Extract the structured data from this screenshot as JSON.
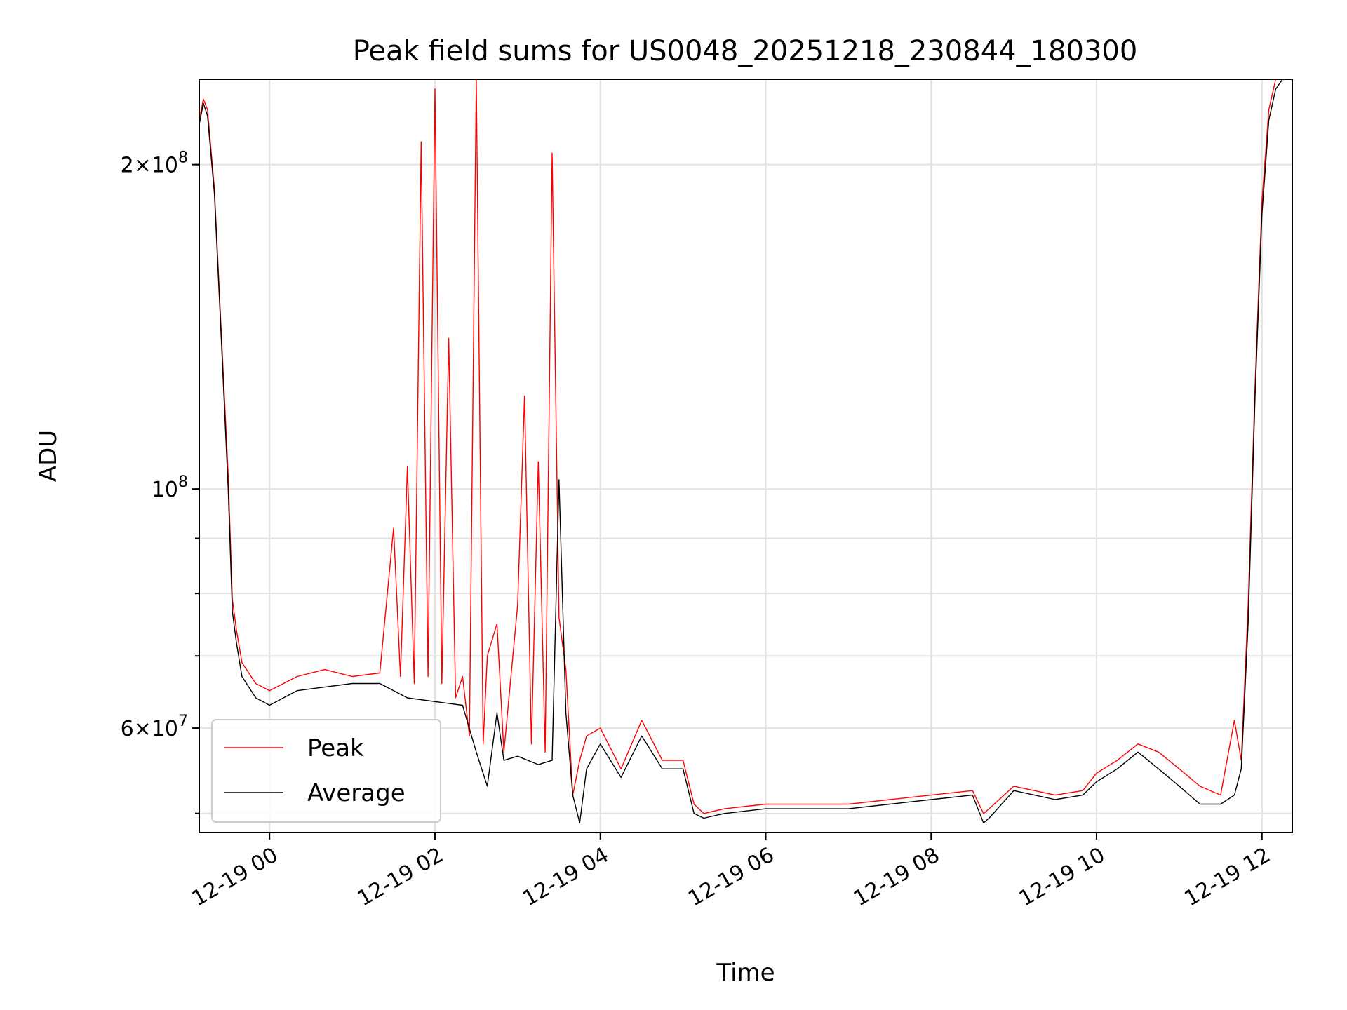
{
  "chart_data": {
    "type": "line",
    "title": "Peak field sums for US0048_20251218_230844_180300",
    "xlabel": "Time",
    "ylabel": "ADU",
    "yscale": "log",
    "xlim": [
      "2025-12-18 23:09",
      "2025-12-19 12:22"
    ],
    "ylim": [
      48000000,
      240000000
    ],
    "grid": true,
    "legend_position": "lower-left",
    "x_ticks": [
      "12-19 00",
      "12-19 02",
      "12-19 04",
      "12-19 06",
      "12-19 08",
      "12-19 10",
      "12-19 12"
    ],
    "y_ticks": [
      {
        "value": 200000000,
        "mantissa": "2",
        "exponent": "8"
      },
      {
        "value": 100000000,
        "mantissa": "",
        "exponent": "8"
      },
      {
        "value": 60000000,
        "mantissa": "6",
        "exponent": "7"
      }
    ],
    "series": [
      {
        "name": "Peak",
        "color": "#ff0000",
        "x": [
          "2025-12-18 23:09",
          "2025-12-18 23:12",
          "2025-12-18 23:15",
          "2025-12-18 23:20",
          "2025-12-18 23:25",
          "2025-12-18 23:30",
          "2025-12-18 23:33",
          "2025-12-18 23:36",
          "2025-12-18 23:40",
          "2025-12-18 23:50",
          "2025-12-19 00:00",
          "2025-12-19 00:20",
          "2025-12-19 00:40",
          "2025-12-19 01:00",
          "2025-12-19 01:20",
          "2025-12-19 01:30",
          "2025-12-19 01:35",
          "2025-12-19 01:40",
          "2025-12-19 01:45",
          "2025-12-19 01:50",
          "2025-12-19 01:55",
          "2025-12-19 02:00",
          "2025-12-19 02:05",
          "2025-12-19 02:10",
          "2025-12-19 02:15",
          "2025-12-19 02:20",
          "2025-12-19 02:25",
          "2025-12-19 02:30",
          "2025-12-19 02:35",
          "2025-12-19 02:38",
          "2025-12-19 02:45",
          "2025-12-19 02:50",
          "2025-12-19 03:00",
          "2025-12-19 03:05",
          "2025-12-19 03:10",
          "2025-12-19 03:15",
          "2025-12-19 03:20",
          "2025-12-19 03:25",
          "2025-12-19 03:30",
          "2025-12-19 03:35",
          "2025-12-19 03:40",
          "2025-12-19 03:45",
          "2025-12-19 03:50",
          "2025-12-19 04:00",
          "2025-12-19 04:15",
          "2025-12-19 04:30",
          "2025-12-19 04:45",
          "2025-12-19 05:00",
          "2025-12-19 05:08",
          "2025-12-19 05:15",
          "2025-12-19 05:30",
          "2025-12-19 06:00",
          "2025-12-19 06:30",
          "2025-12-19 07:00",
          "2025-12-19 07:30",
          "2025-12-19 08:00",
          "2025-12-19 08:30",
          "2025-12-19 08:38",
          "2025-12-19 08:42",
          "2025-12-19 09:00",
          "2025-12-19 09:30",
          "2025-12-19 09:50",
          "2025-12-19 10:00",
          "2025-12-19 10:15",
          "2025-12-19 10:30",
          "2025-12-19 10:45",
          "2025-12-19 11:00",
          "2025-12-19 11:15",
          "2025-12-19 11:30",
          "2025-12-19 11:40",
          "2025-12-19 11:45",
          "2025-12-19 11:50",
          "2025-12-19 11:55",
          "2025-12-19 12:00",
          "2025-12-19 12:05",
          "2025-12-19 12:10",
          "2025-12-19 12:15",
          "2025-12-19 12:22"
        ],
        "values": [
          220000000,
          230000000,
          225000000,
          190000000,
          140000000,
          103000000,
          79000000,
          74000000,
          69000000,
          66000000,
          65000000,
          67000000,
          68000000,
          67000000,
          67500000,
          92000000,
          67000000,
          105000000,
          66000000,
          210000000,
          67000000,
          235000000,
          66000000,
          138000000,
          64000000,
          67000000,
          59000000,
          240000000,
          58000000,
          70000000,
          75000000,
          57000000,
          78000000,
          122000000,
          58000000,
          106000000,
          57000000,
          205000000,
          76000000,
          68000000,
          52000000,
          56000000,
          59000000,
          60000000,
          55000000,
          61000000,
          56000000,
          56000000,
          51000000,
          50000000,
          50500000,
          51000000,
          51000000,
          51000000,
          51500000,
          52000000,
          52500000,
          50000000,
          50500000,
          53000000,
          52000000,
          52500000,
          54500000,
          56000000,
          58000000,
          57000000,
          55000000,
          53000000,
          52000000,
          61000000,
          56000000,
          78000000,
          125000000,
          185000000,
          225000000,
          240000000,
          240000000,
          240000000
        ]
      },
      {
        "name": "Average",
        "color": "#000000",
        "x": [
          "2025-12-18 23:09",
          "2025-12-18 23:12",
          "2025-12-18 23:15",
          "2025-12-18 23:20",
          "2025-12-18 23:25",
          "2025-12-18 23:30",
          "2025-12-18 23:33",
          "2025-12-18 23:36",
          "2025-12-18 23:40",
          "2025-12-18 23:50",
          "2025-12-19 00:00",
          "2025-12-19 00:20",
          "2025-12-19 00:40",
          "2025-12-19 01:00",
          "2025-12-19 01:20",
          "2025-12-19 01:40",
          "2025-12-19 02:00",
          "2025-12-19 02:20",
          "2025-12-19 02:30",
          "2025-12-19 02:38",
          "2025-12-19 02:45",
          "2025-12-19 02:50",
          "2025-12-19 03:00",
          "2025-12-19 03:15",
          "2025-12-19 03:25",
          "2025-12-19 03:30",
          "2025-12-19 03:35",
          "2025-12-19 03:40",
          "2025-12-19 03:45",
          "2025-12-19 03:50",
          "2025-12-19 04:00",
          "2025-12-19 04:15",
          "2025-12-19 04:30",
          "2025-12-19 04:45",
          "2025-12-19 05:00",
          "2025-12-19 05:08",
          "2025-12-19 05:15",
          "2025-12-19 05:30",
          "2025-12-19 06:00",
          "2025-12-19 06:30",
          "2025-12-19 07:00",
          "2025-12-19 07:30",
          "2025-12-19 08:00",
          "2025-12-19 08:30",
          "2025-12-19 08:38",
          "2025-12-19 08:42",
          "2025-12-19 09:00",
          "2025-12-19 09:30",
          "2025-12-19 09:50",
          "2025-12-19 10:00",
          "2025-12-19 10:15",
          "2025-12-19 10:30",
          "2025-12-19 10:45",
          "2025-12-19 11:00",
          "2025-12-19 11:15",
          "2025-12-19 11:30",
          "2025-12-19 11:40",
          "2025-12-19 11:45",
          "2025-12-19 11:50",
          "2025-12-19 11:55",
          "2025-12-19 12:00",
          "2025-12-19 12:05",
          "2025-12-19 12:10",
          "2025-12-19 12:15",
          "2025-12-19 12:22"
        ],
        "values": [
          218000000,
          228000000,
          222000000,
          188000000,
          138000000,
          100000000,
          77000000,
          72000000,
          67000000,
          64000000,
          63000000,
          65000000,
          65500000,
          66000000,
          66000000,
          64000000,
          63500000,
          63000000,
          57000000,
          53000000,
          62000000,
          56000000,
          56500000,
          55500000,
          56000000,
          102000000,
          62000000,
          52000000,
          49000000,
          55000000,
          58000000,
          54000000,
          59000000,
          55000000,
          55000000,
          50000000,
          49500000,
          50000000,
          50500000,
          50500000,
          50500000,
          51000000,
          51500000,
          52000000,
          49000000,
          49500000,
          52500000,
          51500000,
          52000000,
          53500000,
          55000000,
          57000000,
          55000000,
          53000000,
          51000000,
          51000000,
          52000000,
          55000000,
          75000000,
          122000000,
          180000000,
          220000000,
          235000000,
          240000000,
          240000000
        ]
      }
    ]
  }
}
